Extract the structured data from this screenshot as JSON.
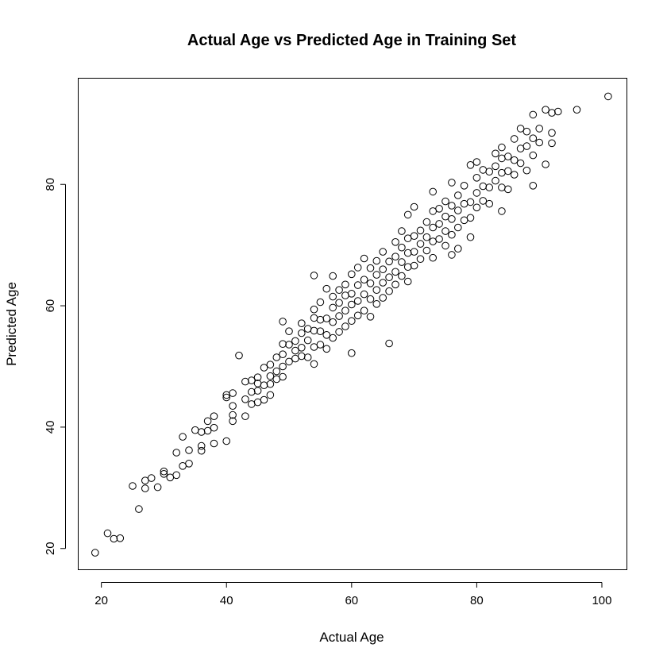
{
  "chart_data": {
    "type": "scatter",
    "title": "Actual Age vs Predicted Age in Training Set",
    "xlabel": "Actual Age",
    "ylabel": "Predicted Age",
    "xlim": [
      16.3,
      104
    ],
    "ylim": [
      16.5,
      97.5
    ],
    "xticks": [
      20,
      40,
      60,
      80,
      100
    ],
    "yticks": [
      20,
      40,
      60,
      80
    ],
    "legend": "none",
    "grid": false,
    "marker": "open-circle",
    "colors": {
      "points": "#000000",
      "axes": "#000000",
      "background": "#ffffff"
    },
    "points": [
      [
        19,
        19.3
      ],
      [
        21,
        22.5
      ],
      [
        22,
        21.6
      ],
      [
        23,
        21.7
      ],
      [
        25,
        30.3
      ],
      [
        26,
        26.5
      ],
      [
        27,
        29.9
      ],
      [
        27,
        31.2
      ],
      [
        28,
        31.6
      ],
      [
        29,
        30.1
      ],
      [
        30,
        32.3
      ],
      [
        30,
        32.7
      ],
      [
        31,
        31.7
      ],
      [
        32,
        32.1
      ],
      [
        32,
        35.8
      ],
      [
        33,
        33.6
      ],
      [
        33,
        38.4
      ],
      [
        34,
        34
      ],
      [
        34,
        36.2
      ],
      [
        35,
        39.5
      ],
      [
        36,
        36.1
      ],
      [
        36,
        36.9
      ],
      [
        36,
        39.2
      ],
      [
        37,
        41
      ],
      [
        37,
        39.4
      ],
      [
        38,
        37.3
      ],
      [
        38,
        39.9
      ],
      [
        38,
        41.8
      ],
      [
        40,
        37.7
      ],
      [
        40,
        44.9
      ],
      [
        40,
        45.3
      ],
      [
        41,
        41
      ],
      [
        41,
        42
      ],
      [
        41,
        43.5
      ],
      [
        41,
        45.6
      ],
      [
        42,
        51.8
      ],
      [
        43,
        41.8
      ],
      [
        43,
        44.6
      ],
      [
        43,
        47.5
      ],
      [
        44,
        43.8
      ],
      [
        44,
        45.8
      ],
      [
        44,
        47.7
      ],
      [
        45,
        44.1
      ],
      [
        45,
        46
      ],
      [
        45,
        47.2
      ],
      [
        45,
        48.2
      ],
      [
        46,
        44.5
      ],
      [
        46,
        46.9
      ],
      [
        46,
        49.8
      ],
      [
        47,
        45.3
      ],
      [
        47,
        47.1
      ],
      [
        47,
        48.4
      ],
      [
        47,
        50.3
      ],
      [
        48,
        47.9
      ],
      [
        48,
        49.2
      ],
      [
        48,
        51.5
      ],
      [
        49,
        48.3
      ],
      [
        49,
        50
      ],
      [
        49,
        52
      ],
      [
        49,
        53.7
      ],
      [
        49,
        57.4
      ],
      [
        50,
        50.8
      ],
      [
        50,
        53.6
      ],
      [
        50,
        55.8
      ],
      [
        51,
        51.3
      ],
      [
        51,
        52.6
      ],
      [
        51,
        54.2
      ],
      [
        52,
        51.7
      ],
      [
        52,
        53.1
      ],
      [
        52,
        55.5
      ],
      [
        52,
        57.1
      ],
      [
        53,
        51.5
      ],
      [
        53,
        54.3
      ],
      [
        53,
        56.2
      ],
      [
        54,
        50.4
      ],
      [
        54,
        53.2
      ],
      [
        54,
        55.9
      ],
      [
        54,
        58
      ],
      [
        54,
        59.4
      ],
      [
        54,
        65
      ],
      [
        55,
        53.6
      ],
      [
        55,
        55.8
      ],
      [
        55,
        57.7
      ],
      [
        55,
        60.6
      ],
      [
        56,
        52.9
      ],
      [
        56,
        55.2
      ],
      [
        56,
        57.9
      ],
      [
        56,
        62.8
      ],
      [
        57,
        54.7
      ],
      [
        57,
        57.3
      ],
      [
        57,
        59.7
      ],
      [
        57,
        61.5
      ],
      [
        57,
        64.9
      ],
      [
        58,
        55.7
      ],
      [
        58,
        58.3
      ],
      [
        58,
        60.5
      ],
      [
        58,
        62.6
      ],
      [
        59,
        56.6
      ],
      [
        59,
        59.2
      ],
      [
        59,
        61.7
      ],
      [
        59,
        63.5
      ],
      [
        60,
        52.2
      ],
      [
        60,
        57.5
      ],
      [
        60,
        60.2
      ],
      [
        60,
        62
      ],
      [
        60,
        65.2
      ],
      [
        61,
        58.4
      ],
      [
        61,
        60.8
      ],
      [
        61,
        63.4
      ],
      [
        61,
        66.3
      ],
      [
        62,
        59.2
      ],
      [
        62,
        61.9
      ],
      [
        62,
        64.3
      ],
      [
        62,
        67.8
      ],
      [
        63,
        58.2
      ],
      [
        63,
        61.1
      ],
      [
        63,
        63.7
      ],
      [
        63,
        66.2
      ],
      [
        64,
        60.3
      ],
      [
        64,
        62.6
      ],
      [
        64,
        65.1
      ],
      [
        64,
        67.4
      ],
      [
        65,
        61.3
      ],
      [
        65,
        63.8
      ],
      [
        65,
        66
      ],
      [
        65,
        68.9
      ],
      [
        66,
        53.8
      ],
      [
        66,
        62.4
      ],
      [
        66,
        64.7
      ],
      [
        66,
        67.3
      ],
      [
        67,
        63.5
      ],
      [
        67,
        65.6
      ],
      [
        67,
        68.1
      ],
      [
        67,
        70.5
      ],
      [
        68,
        64.9
      ],
      [
        68,
        67.2
      ],
      [
        68,
        69.6
      ],
      [
        68,
        72.3
      ],
      [
        69,
        64
      ],
      [
        69,
        66.4
      ],
      [
        69,
        68.7
      ],
      [
        69,
        71.1
      ],
      [
        69,
        75
      ],
      [
        70,
        66.6
      ],
      [
        70,
        68.9
      ],
      [
        70,
        71.5
      ],
      [
        70,
        76.3
      ],
      [
        71,
        67.7
      ],
      [
        71,
        70.2
      ],
      [
        71,
        72.4
      ],
      [
        72,
        69.1
      ],
      [
        72,
        71.3
      ],
      [
        72,
        73.8
      ],
      [
        73,
        67.9
      ],
      [
        73,
        70.6
      ],
      [
        73,
        72.9
      ],
      [
        73,
        75.6
      ],
      [
        73,
        78.8
      ],
      [
        74,
        71
      ],
      [
        74,
        73.5
      ],
      [
        74,
        76
      ],
      [
        75,
        69.9
      ],
      [
        75,
        72.3
      ],
      [
        75,
        74.7
      ],
      [
        75,
        77.2
      ],
      [
        76,
        68.4
      ],
      [
        76,
        71.7
      ],
      [
        76,
        74.3
      ],
      [
        76,
        76.5
      ],
      [
        76,
        80.3
      ],
      [
        77,
        69.4
      ],
      [
        77,
        72.9
      ],
      [
        77,
        75.7
      ],
      [
        77,
        78.2
      ],
      [
        78,
        74.1
      ],
      [
        78,
        76.8
      ],
      [
        78,
        79.8
      ],
      [
        79,
        71.3
      ],
      [
        79,
        74.5
      ],
      [
        79,
        77.1
      ],
      [
        79,
        83.2
      ],
      [
        80,
        76.2
      ],
      [
        80,
        78.6
      ],
      [
        80,
        81.1
      ],
      [
        80,
        83.7
      ],
      [
        81,
        77.3
      ],
      [
        81,
        79.7
      ],
      [
        81,
        82.4
      ],
      [
        82,
        76.8
      ],
      [
        82,
        79.5
      ],
      [
        82,
        82.1
      ],
      [
        83,
        80.6
      ],
      [
        83,
        83
      ],
      [
        83,
        85.1
      ],
      [
        84,
        75.6
      ],
      [
        84,
        79.5
      ],
      [
        84,
        81.9
      ],
      [
        84,
        84.3
      ],
      [
        84,
        86.1
      ],
      [
        85,
        79.2
      ],
      [
        85,
        82.2
      ],
      [
        85,
        84.6
      ],
      [
        86,
        81.6
      ],
      [
        86,
        84
      ],
      [
        86,
        87.5
      ],
      [
        87,
        83.5
      ],
      [
        87,
        85.9
      ],
      [
        87,
        89.2
      ],
      [
        88,
        82.3
      ],
      [
        88,
        86.3
      ],
      [
        88,
        88.7
      ],
      [
        89,
        79.8
      ],
      [
        89,
        84.8
      ],
      [
        89,
        87.6
      ],
      [
        89,
        91.5
      ],
      [
        90,
        86.9
      ],
      [
        90,
        89.2
      ],
      [
        91,
        83.3
      ],
      [
        91,
        92.3
      ],
      [
        92,
        86.8
      ],
      [
        92,
        88.5
      ],
      [
        92,
        91.8
      ],
      [
        93,
        92
      ],
      [
        96,
        92.3
      ],
      [
        101,
        94.5
      ]
    ]
  }
}
